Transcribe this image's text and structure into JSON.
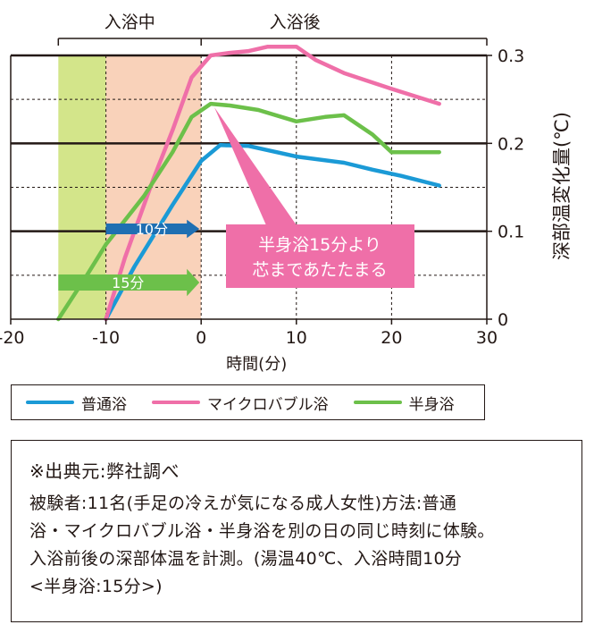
{
  "chart_data": {
    "type": "line",
    "x": [
      -20,
      -10,
      -5,
      0,
      5,
      10,
      15,
      20,
      25
    ],
    "xlim": [
      -20,
      30
    ],
    "ylim": [
      0,
      0.3
    ],
    "xticks": [
      -20,
      -10,
      0,
      10,
      20,
      30
    ],
    "yticks": [
      0,
      0.1,
      0.2,
      0.3
    ],
    "xticklabels": [
      "-20",
      "-10",
      "0",
      "10",
      "20",
      "30"
    ],
    "yticklabels": [
      "0",
      "0.1",
      "0.2",
      "0.3"
    ],
    "xlabel": "時間(分)",
    "ylabel": "深部温変化量(℃)",
    "grid": "horizontal solid at 0.1 steps, dashed at 0.05 steps; vertical dashed at -10, 0, 10, 20",
    "series": [
      {
        "name": "普通浴",
        "color": "#1b9ad6",
        "points": [
          [
            -10,
            0
          ],
          [
            -7,
            0.06
          ],
          [
            -5,
            0.095
          ],
          [
            -3,
            0.13
          ],
          [
            0,
            0.18
          ],
          [
            2,
            0.198
          ],
          [
            5,
            0.197
          ],
          [
            10,
            0.185
          ],
          [
            15,
            0.178
          ],
          [
            18,
            0.17
          ],
          [
            21,
            0.163
          ],
          [
            25,
            0.152
          ]
        ]
      },
      {
        "name": "マイクロバブル浴",
        "color": "#ef6fa8",
        "points": [
          [
            -10,
            0
          ],
          [
            -8,
            0.07
          ],
          [
            -5,
            0.16
          ],
          [
            -3,
            0.215
          ],
          [
            -1,
            0.275
          ],
          [
            1,
            0.3
          ],
          [
            3,
            0.303
          ],
          [
            5,
            0.305
          ],
          [
            7,
            0.31
          ],
          [
            10,
            0.31
          ],
          [
            12,
            0.295
          ],
          [
            15,
            0.28
          ],
          [
            20,
            0.262
          ],
          [
            25,
            0.245
          ]
        ]
      },
      {
        "name": "半身浴",
        "color": "#6cc04a",
        "points": [
          [
            -15,
            0
          ],
          [
            -12,
            0.05
          ],
          [
            -10,
            0.085
          ],
          [
            -6,
            0.14
          ],
          [
            -3,
            0.19
          ],
          [
            -1,
            0.23
          ],
          [
            1,
            0.245
          ],
          [
            3,
            0.243
          ],
          [
            6,
            0.238
          ],
          [
            10,
            0.225
          ],
          [
            13,
            0.23
          ],
          [
            15,
            0.232
          ],
          [
            18,
            0.21
          ],
          [
            20,
            0.19
          ],
          [
            25,
            0.19
          ]
        ]
      }
    ],
    "phases": [
      {
        "label": "入浴中",
        "from": -15,
        "to": 0
      },
      {
        "label": "入浴後",
        "from": 0,
        "to": 30
      }
    ],
    "bath_periods": [
      {
        "label": "15分",
        "from": -15,
        "to": 0,
        "color": "#d3e58a",
        "arrow_color": "#6cc04a"
      },
      {
        "label": "10分",
        "from": -10,
        "to": 0,
        "color": "#f9d2ba",
        "arrow_color": "#1f6fb2"
      }
    ],
    "annotation": {
      "lines": [
        "半身浴15分より",
        "芯まであたたまる"
      ],
      "color": "#ef6fa8"
    }
  },
  "legend": {
    "items": [
      {
        "label": "普通浴",
        "color": "#1b9ad6"
      },
      {
        "label": "マイクロバブル浴",
        "color": "#ef6fa8"
      },
      {
        "label": "半身浴",
        "color": "#6cc04a"
      }
    ]
  },
  "note": {
    "title": "※出典元:弊社調べ",
    "lines": [
      "被験者:11名(手足の冷えが気になる成人女性)方法:普通",
      "浴・マイクロバブル浴・半身浴を別の日の同じ時刻に体験。",
      "入浴前後の深部体温を計測。(湯温40℃、入浴時間10分",
      "<半身浴:15分>)"
    ]
  }
}
